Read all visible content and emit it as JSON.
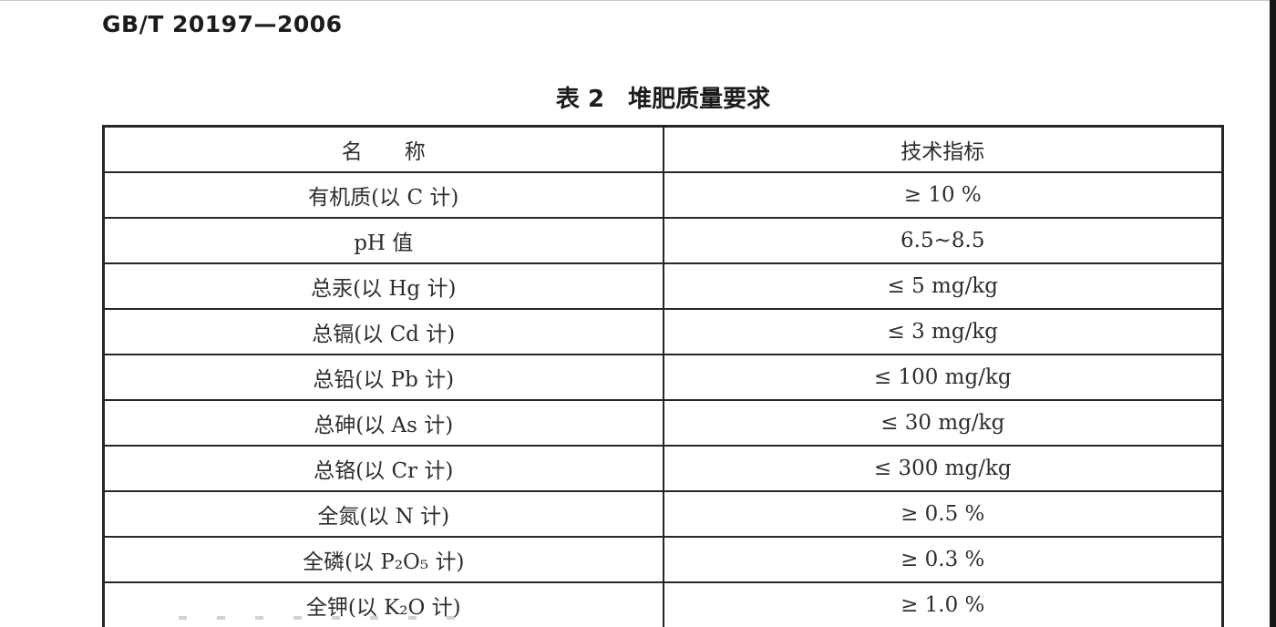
{
  "page": {
    "doc_number": "GB/T 20197—2006",
    "table_caption": "表 2　堆肥质量要求"
  },
  "table": {
    "headers": [
      "名　　称",
      "技术指标"
    ],
    "rows": [
      {
        "name": "有机质(以 C 计)",
        "value": "≥ 10 %"
      },
      {
        "name": "pH 值",
        "value": "6.5~8.5"
      },
      {
        "name": "总汞(以 Hg 计)",
        "value": "≤ 5 mg/kg"
      },
      {
        "name": "总镉(以 Cd 计)",
        "value": "≤ 3 mg/kg"
      },
      {
        "name": "总铅(以 Pb 计)",
        "value": "≤ 100 mg/kg"
      },
      {
        "name": "总砷(以 As 计)",
        "value": "≤ 30 mg/kg"
      },
      {
        "name": "总铬(以 Cr 计)",
        "value": "≤ 300 mg/kg"
      },
      {
        "name": "全氮(以 N 计)",
        "value": "≥ 0.5 %"
      },
      {
        "name": "全磷(以 P₂O₅ 计)",
        "value": "≥ 0.3 %"
      },
      {
        "name": "全钾(以 K₂O 计)",
        "value": "≥ 1.0 %"
      }
    ]
  }
}
